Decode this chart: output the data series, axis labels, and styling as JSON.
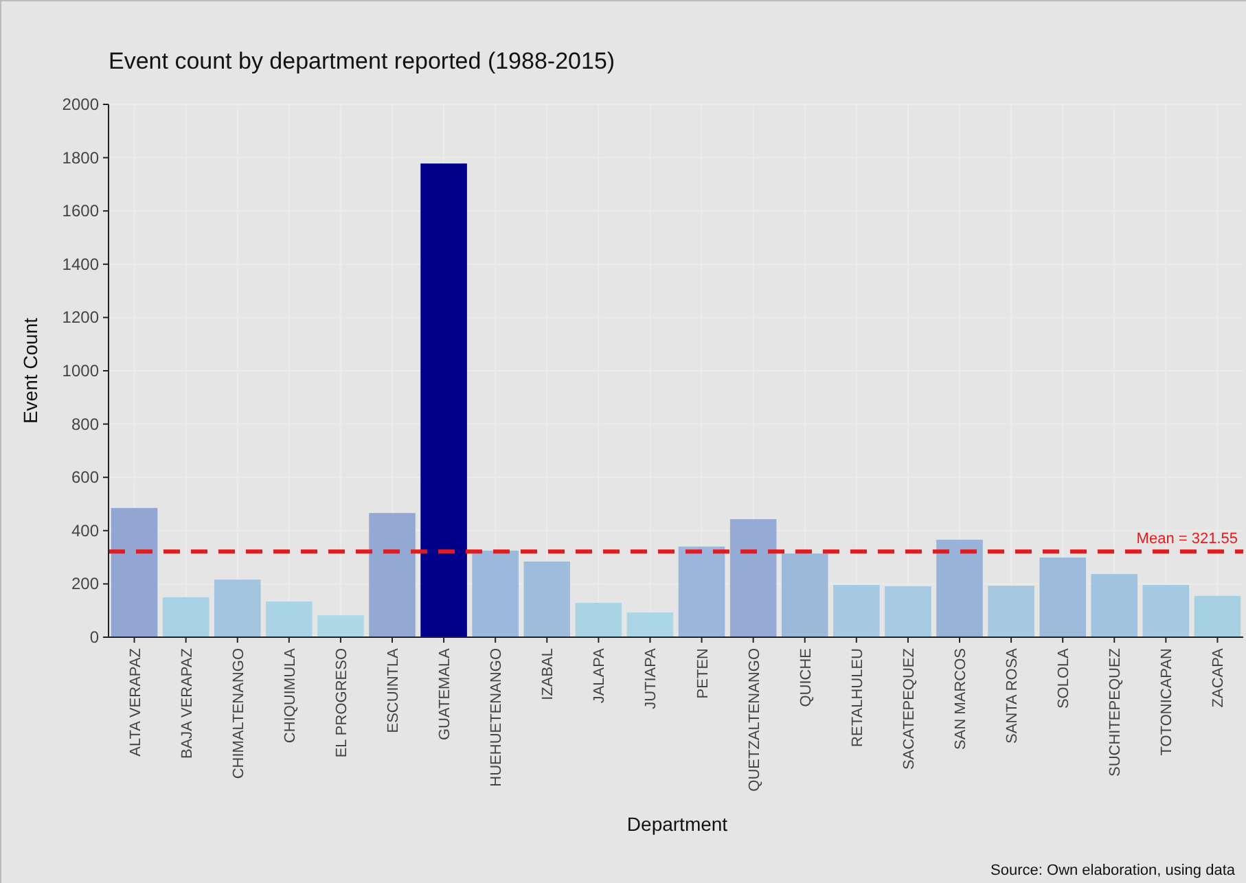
{
  "chart_data": {
    "type": "bar",
    "title": "Event count by department reported (1988-2015)",
    "xlabel": "Department",
    "ylabel": "Event Count",
    "categories": [
      "ALTA VERAPAZ",
      "BAJA VERAPAZ",
      "CHIMALTENANGO",
      "CHIQUIMULA",
      "EL PROGRESO",
      "ESCUINTLA",
      "GUATEMALA",
      "HUEHUETENANGO",
      "IZABAL",
      "JALAPA",
      "JUTIAPA",
      "PETEN",
      "QUETZALTENANGO",
      "QUICHE",
      "RETALHULEU",
      "SACATEPEQUEZ",
      "SAN MARCOS",
      "SANTA ROSA",
      "SOLOLA",
      "SUCHITEPEQUEZ",
      "TOTONICAPAN",
      "ZACAPA"
    ],
    "values": [
      485,
      150,
      216,
      134,
      82,
      466,
      1778,
      325,
      284,
      129,
      93,
      340,
      443,
      314,
      196,
      191,
      366,
      193,
      299,
      237,
      196,
      155
    ],
    "colors": [
      "#93a6d3",
      "#a8d2e4",
      "#a3c4df",
      "#aad3e5",
      "#add8e6",
      "#94a8d4",
      "#00008b",
      "#9cb8da",
      "#9ebcdb",
      "#aad3e4",
      "#acd6e6",
      "#9bb6da",
      "#95aad5",
      "#9db9da",
      "#a5c9e1",
      "#a6cae1",
      "#99b3d8",
      "#a5c9e1",
      "#9dbadb",
      "#a2c3de",
      "#a5c9e1",
      "#a8d0e3"
    ],
    "ylim": [
      0,
      2000
    ],
    "yticks": [
      0,
      200,
      400,
      600,
      800,
      1000,
      1200,
      1400,
      1600,
      1800,
      2000
    ],
    "grid": true,
    "ref_lines": [
      {
        "axis": "y",
        "value": 321.55,
        "label": "Mean = 321.55",
        "color": "#e41a1c",
        "line_style": "dashed"
      }
    ],
    "annotations": [
      "Source: Own elaboration, using data"
    ]
  }
}
